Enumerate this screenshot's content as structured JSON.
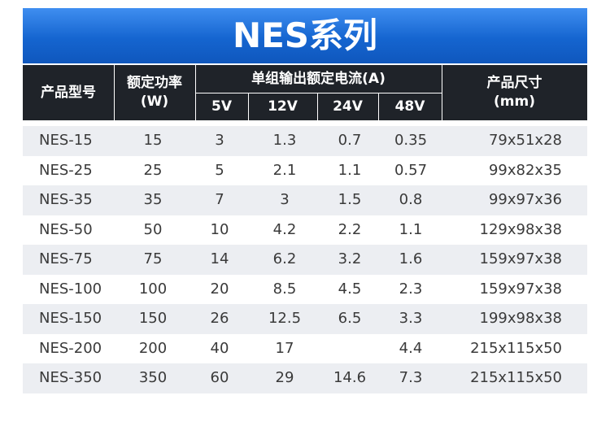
{
  "title": "NES系列",
  "table": {
    "header": {
      "model": "产品型号",
      "power": "额定功率\n(W)",
      "current": "单组输出额定电流(A)",
      "voltages": [
        "5V",
        "12V",
        "24V",
        "48V"
      ],
      "size": "产品尺寸\n(mm)"
    },
    "rows": [
      [
        "NES-15",
        "15",
        "3",
        "1.3",
        "0.7",
        "0.35",
        "79x51x28"
      ],
      [
        "NES-25",
        "25",
        "5",
        "2.1",
        "1.1",
        "0.57",
        "99x82x35"
      ],
      [
        "NES-35",
        "35",
        "7",
        "3",
        "1.5",
        "0.8",
        "99x97x36"
      ],
      [
        "NES-50",
        "50",
        "10",
        "4.2",
        "2.2",
        "1.1",
        "129x98x38"
      ],
      [
        "NES-75",
        "75",
        "14",
        "6.2",
        "3.2",
        "1.6",
        "159x97x38"
      ],
      [
        "NES-100",
        "100",
        "20",
        "8.5",
        "4.5",
        "2.3",
        "159x97x38"
      ],
      [
        "NES-150",
        "150",
        "26",
        "12.5",
        "6.5",
        "3.3",
        "199x98x38"
      ],
      [
        "NES-200",
        "200",
        "40",
        "17",
        null,
        "4.4",
        "215x115x50"
      ],
      [
        "NES-350",
        "350",
        "60",
        "29",
        "14.6",
        "7.3",
        "215x115x50"
      ]
    ]
  }
}
